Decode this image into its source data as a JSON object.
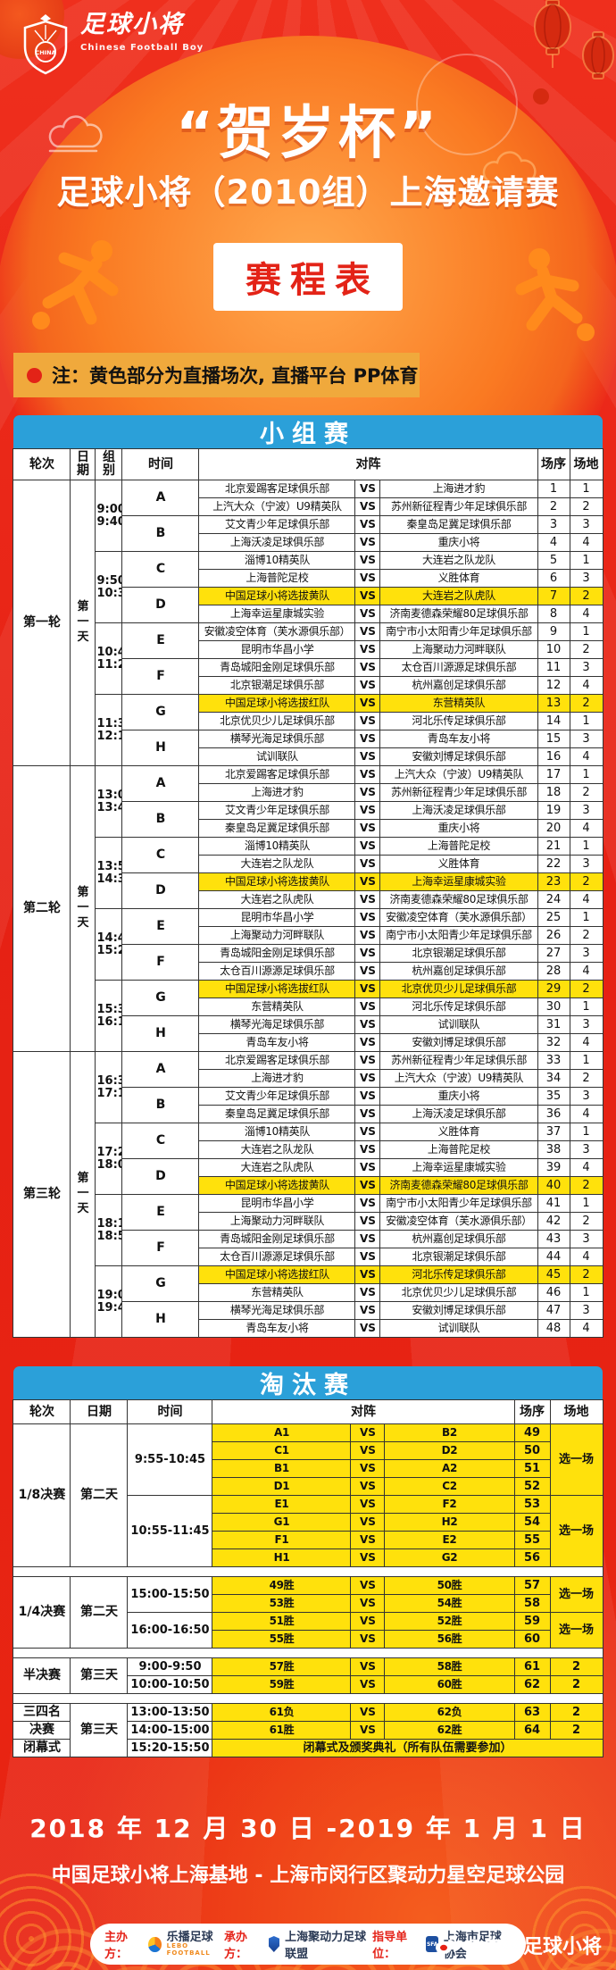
{
  "colors": {
    "background_red": "#e62417",
    "accent_orange": "#f9731f",
    "table_blue": "#2ba0d9",
    "highlight_yellow": "#ffe10c",
    "note_gold": "#f0a93c"
  },
  "labels": {
    "vs": "VS"
  },
  "header": {
    "logo": {
      "icon": "shield-eagle-icon",
      "badge_text": "CHINA",
      "brand_cn": "足球小将",
      "brand_en": "Chinese Football Boy"
    },
    "title": "“贺岁杯”",
    "subtitle": "足球小将（2010组）上海邀请赛",
    "badge": "赛程表",
    "decorations": [
      "lantern-icon",
      "cloud-icon",
      "player-silhouette-icon",
      "football-icon"
    ]
  },
  "note": {
    "icon": "red-dot-icon",
    "text": "注：黄色部分为直播场次, 直播平台 PP体育"
  },
  "group_stage": {
    "title": "小组赛",
    "headers": [
      "轮次",
      "日期",
      "组别",
      "时间",
      "对阵",
      "场序",
      "场地"
    ],
    "rounds": [
      {
        "round": "第一轮",
        "date": "第一天",
        "slots": [
          {
            "time": "9:00-9:40",
            "groups": [
              {
                "group": "A",
                "matches": [
                  {
                    "home": "北京爱踢客足球俱乐部",
                    "away": "上海进才豹",
                    "seq": "1",
                    "field": "1"
                  },
                  {
                    "home": "上汽大众（宁波）U9精英队",
                    "away": "苏州新征程青少年足球俱乐部",
                    "seq": "2",
                    "field": "2"
                  }
                ]
              },
              {
                "group": "B",
                "matches": [
                  {
                    "home": "艾文青少年足球俱乐部",
                    "away": "秦皇岛足冀足球俱乐部",
                    "seq": "3",
                    "field": "3"
                  },
                  {
                    "home": "上海沃凌足球俱乐部",
                    "away": "重庆小将",
                    "seq": "4",
                    "field": "4"
                  }
                ]
              }
            ]
          },
          {
            "time": "9:50-10:30",
            "groups": [
              {
                "group": "C",
                "matches": [
                  {
                    "home": "淄博10精英队",
                    "away": "大连岩之队龙队",
                    "seq": "5",
                    "field": "1"
                  },
                  {
                    "home": "上海普陀足校",
                    "away": "义胜体育",
                    "seq": "6",
                    "field": "3"
                  }
                ]
              },
              {
                "group": "D",
                "matches": [
                  {
                    "home": "中国足球小将选拔黄队",
                    "away": "大连岩之队虎队",
                    "seq": "7",
                    "field": "2",
                    "hl": true
                  },
                  {
                    "home": "上海幸运星康城实验",
                    "away": "济南麦德森荣耀80足球俱乐部",
                    "seq": "8",
                    "field": "4"
                  }
                ]
              }
            ]
          },
          {
            "time": "10:40-11:20",
            "groups": [
              {
                "group": "E",
                "matches": [
                  {
                    "home": "安徽凌空体育（芙水源俱乐部）",
                    "away": "南宁市小太阳青少年足球俱乐部",
                    "seq": "9",
                    "field": "1"
                  },
                  {
                    "home": "昆明市华昌小学",
                    "away": "上海聚动力河畔联队",
                    "seq": "10",
                    "field": "2"
                  }
                ]
              },
              {
                "group": "F",
                "matches": [
                  {
                    "home": "青岛城阳金刚足球俱乐部",
                    "away": "太仓百川源源足球俱乐部",
                    "seq": "11",
                    "field": "3"
                  },
                  {
                    "home": "北京银潮足球俱乐部",
                    "away": "杭州嘉创足球俱乐部",
                    "seq": "12",
                    "field": "4"
                  }
                ]
              }
            ]
          },
          {
            "time": "11:30-12:10",
            "groups": [
              {
                "group": "G",
                "matches": [
                  {
                    "home": "中国足球小将选拔红队",
                    "away": "东营精英队",
                    "seq": "13",
                    "field": "2",
                    "hl": true
                  },
                  {
                    "home": "北京优贝少儿足球俱乐部",
                    "away": "河北乐传足球俱乐部",
                    "seq": "14",
                    "field": "1"
                  }
                ]
              },
              {
                "group": "H",
                "matches": [
                  {
                    "home": "横琴光海足球俱乐部",
                    "away": "青岛车友小将",
                    "seq": "15",
                    "field": "3"
                  },
                  {
                    "home": "试训联队",
                    "away": "安徽刘博足球俱乐部",
                    "seq": "16",
                    "field": "4"
                  }
                ]
              }
            ]
          }
        ]
      },
      {
        "round": "第二轮",
        "date": "第一天",
        "slots": [
          {
            "time": "13:00-13:40",
            "groups": [
              {
                "group": "A",
                "matches": [
                  {
                    "home": "北京爱踢客足球俱乐部",
                    "away": "上汽大众（宁波）U9精英队",
                    "seq": "17",
                    "field": "1"
                  },
                  {
                    "home": "上海进才豹",
                    "away": "苏州新征程青少年足球俱乐部",
                    "seq": "18",
                    "field": "2"
                  }
                ]
              },
              {
                "group": "B",
                "matches": [
                  {
                    "home": "艾文青少年足球俱乐部",
                    "away": "上海沃凌足球俱乐部",
                    "seq": "19",
                    "field": "3"
                  },
                  {
                    "home": "秦皇岛足冀足球俱乐部",
                    "away": "重庆小将",
                    "seq": "20",
                    "field": "4"
                  }
                ]
              }
            ]
          },
          {
            "time": "13:50-14:30",
            "groups": [
              {
                "group": "C",
                "matches": [
                  {
                    "home": "淄博10精英队",
                    "away": "上海普陀足校",
                    "seq": "21",
                    "field": "1"
                  },
                  {
                    "home": "大连岩之队龙队",
                    "away": "义胜体育",
                    "seq": "22",
                    "field": "3"
                  }
                ]
              },
              {
                "group": "D",
                "matches": [
                  {
                    "home": "中国足球小将选拔黄队",
                    "away": "上海幸运星康城实验",
                    "seq": "23",
                    "field": "2",
                    "hl": true
                  },
                  {
                    "home": "大连岩之队虎队",
                    "away": "济南麦德森荣耀80足球俱乐部",
                    "seq": "24",
                    "field": "4"
                  }
                ]
              }
            ]
          },
          {
            "time": "14:40-15:20",
            "groups": [
              {
                "group": "E",
                "matches": [
                  {
                    "home": "昆明市华昌小学",
                    "away": "安徽凌空体育（芙水源俱乐部）",
                    "seq": "25",
                    "field": "1"
                  },
                  {
                    "home": "上海聚动力河畔联队",
                    "away": "南宁市小太阳青少年足球俱乐部",
                    "seq": "26",
                    "field": "2"
                  }
                ]
              },
              {
                "group": "F",
                "matches": [
                  {
                    "home": "青岛城阳金刚足球俱乐部",
                    "away": "北京银潮足球俱乐部",
                    "seq": "27",
                    "field": "3"
                  },
                  {
                    "home": "太仓百川源源足球俱乐部",
                    "away": "杭州嘉创足球俱乐部",
                    "seq": "28",
                    "field": "4"
                  }
                ]
              }
            ]
          },
          {
            "time": "15:30-16:10",
            "groups": [
              {
                "group": "G",
                "matches": [
                  {
                    "home": "中国足球小将选拔红队",
                    "away": "北京优贝少儿足球俱乐部",
                    "seq": "29",
                    "field": "2",
                    "hl": true
                  },
                  {
                    "home": "东营精英队",
                    "away": "河北乐传足球俱乐部",
                    "seq": "30",
                    "field": "1"
                  }
                ]
              },
              {
                "group": "H",
                "matches": [
                  {
                    "home": "横琴光海足球俱乐部",
                    "away": "试训联队",
                    "seq": "31",
                    "field": "3"
                  },
                  {
                    "home": "青岛车友小将",
                    "away": "安徽刘博足球俱乐部",
                    "seq": "32",
                    "field": "4"
                  }
                ]
              }
            ]
          }
        ]
      },
      {
        "round": "第三轮",
        "date": "第一天",
        "slots": [
          {
            "time": "16:30-17:10",
            "groups": [
              {
                "group": "A",
                "matches": [
                  {
                    "home": "北京爱踢客足球俱乐部",
                    "away": "苏州新征程青少年足球俱乐部",
                    "seq": "33",
                    "field": "1"
                  },
                  {
                    "home": "上海进才豹",
                    "away": "上汽大众（宁波）U9精英队",
                    "seq": "34",
                    "field": "2"
                  }
                ]
              },
              {
                "group": "B",
                "matches": [
                  {
                    "home": "艾文青少年足球俱乐部",
                    "away": "重庆小将",
                    "seq": "35",
                    "field": "3"
                  },
                  {
                    "home": "秦皇岛足冀足球俱乐部",
                    "away": "上海沃凌足球俱乐部",
                    "seq": "36",
                    "field": "4"
                  }
                ]
              }
            ]
          },
          {
            "time": "17:20-18:00",
            "groups": [
              {
                "group": "C",
                "matches": [
                  {
                    "home": "淄博10精英队",
                    "away": "义胜体育",
                    "seq": "37",
                    "field": "1"
                  },
                  {
                    "home": "大连岩之队龙队",
                    "away": "上海普陀足校",
                    "seq": "38",
                    "field": "3"
                  }
                ]
              },
              {
                "group": "D",
                "matches": [
                  {
                    "home": "大连岩之队虎队",
                    "away": "上海幸运星康城实验",
                    "seq": "39",
                    "field": "4"
                  },
                  {
                    "home": "中国足球小将选拔黄队",
                    "away": "济南麦德森荣耀80足球俱乐部",
                    "seq": "40",
                    "field": "2",
                    "hl": true
                  }
                ]
              }
            ]
          },
          {
            "time": "18:10-18:50",
            "groups": [
              {
                "group": "E",
                "matches": [
                  {
                    "home": "昆明市华昌小学",
                    "away": "南宁市小太阳青少年足球俱乐部",
                    "seq": "41",
                    "field": "1"
                  },
                  {
                    "home": "上海聚动力河畔联队",
                    "away": "安徽凌空体育（芙水源俱乐部）",
                    "seq": "42",
                    "field": "2"
                  }
                ]
              },
              {
                "group": "F",
                "matches": [
                  {
                    "home": "青岛城阳金刚足球俱乐部",
                    "away": "杭州嘉创足球俱乐部",
                    "seq": "43",
                    "field": "3"
                  },
                  {
                    "home": "太仓百川源源足球俱乐部",
                    "away": "北京银潮足球俱乐部",
                    "seq": "44",
                    "field": "4"
                  }
                ]
              }
            ]
          },
          {
            "time": "19:00-19:40",
            "groups": [
              {
                "group": "G",
                "matches": [
                  {
                    "home": "中国足球小将选拔红队",
                    "away": "河北乐传足球俱乐部",
                    "seq": "45",
                    "field": "2",
                    "hl": true
                  },
                  {
                    "home": "东营精英队",
                    "away": "北京优贝少儿足球俱乐部",
                    "seq": "46",
                    "field": "1"
                  }
                ]
              },
              {
                "group": "H",
                "matches": [
                  {
                    "home": "横琴光海足球俱乐部",
                    "away": "安徽刘博足球俱乐部",
                    "seq": "47",
                    "field": "3"
                  },
                  {
                    "home": "青岛车友小将",
                    "away": "试训联队",
                    "seq": "48",
                    "field": "4"
                  }
                ]
              }
            ]
          }
        ]
      }
    ]
  },
  "knockout": {
    "title": "淘汰赛",
    "headers": [
      "轮次",
      "日期",
      "时间",
      "对阵",
      "场序",
      "场地"
    ],
    "sections": [
      {
        "round": "1/8决赛",
        "date": "第二天",
        "slots": [
          {
            "time": "9:55-10:45",
            "field": "选一场",
            "matches": [
              {
                "home": "A1",
                "away": "B2",
                "seq": "49"
              },
              {
                "home": "C1",
                "away": "D2",
                "seq": "50"
              },
              {
                "home": "B1",
                "away": "A2",
                "seq": "51"
              },
              {
                "home": "D1",
                "away": "C2",
                "seq": "52"
              }
            ]
          },
          {
            "time": "10:55-11:45",
            "field": "选一场",
            "matches": [
              {
                "home": "E1",
                "away": "F2",
                "seq": "53"
              },
              {
                "home": "G1",
                "away": "H2",
                "seq": "54"
              },
              {
                "home": "F1",
                "away": "E2",
                "seq": "55"
              },
              {
                "home": "H1",
                "away": "G2",
                "seq": "56"
              }
            ]
          }
        ]
      },
      {
        "round": "1/4决赛",
        "date": "第二天",
        "slots": [
          {
            "time": "15:00-15:50",
            "field": "选一场",
            "matches": [
              {
                "home": "49胜",
                "away": "50胜",
                "seq": "57"
              },
              {
                "home": "53胜",
                "away": "54胜",
                "seq": "58"
              }
            ]
          },
          {
            "time": "16:00-16:50",
            "field": "选一场",
            "matches": [
              {
                "home": "51胜",
                "away": "52胜",
                "seq": "59"
              },
              {
                "home": "55胜",
                "away": "56胜",
                "seq": "60"
              }
            ]
          }
        ]
      },
      {
        "round": "半决赛",
        "date": "第三天",
        "slots": [
          {
            "time": "9:00-9:50",
            "matches": [
              {
                "home": "57胜",
                "away": "58胜",
                "seq": "61",
                "field": "2"
              }
            ]
          },
          {
            "time": "10:00-10:50",
            "matches": [
              {
                "home": "59胜",
                "away": "60胜",
                "seq": "62",
                "field": "2"
              }
            ]
          }
        ]
      },
      {
        "rows": [
          {
            "round": "三四名",
            "date": "第三天",
            "time": "13:00-13:50",
            "home": "61负",
            "away": "62负",
            "seq": "63",
            "field": "2"
          },
          {
            "round": "决赛",
            "time": "14:00-15:00",
            "home": "61胜",
            "away": "62胜",
            "seq": "64",
            "field": "2"
          },
          {
            "round": "闭幕式",
            "time": "15:20-15:50",
            "note": "闭幕式及颁奖典礼（所有队伍需要参加）"
          }
        ]
      }
    ]
  },
  "footer": {
    "date_range": "2018 年 12 月 30 日 -2019 年 1 月 1 日",
    "venue": "中国足球小将上海基地 - 上海市闵行区聚动力星空足球公园",
    "sponsors": [
      {
        "label": "主办方：",
        "name": "乐播足球",
        "sub": "LEBO FOOTBALL",
        "icon": "lebo-football-icon"
      },
      {
        "label": "承办方：",
        "name": "上海聚动力足球联盟",
        "icon": "judongli-shield-icon"
      },
      {
        "label": "指导单位：",
        "name": "上海市足球协会",
        "icon": "sfa-badge-icon",
        "icon_text": "SFA"
      }
    ],
    "weibo": {
      "icon": "weibo-icon",
      "handle": "@中国足球小将"
    }
  }
}
